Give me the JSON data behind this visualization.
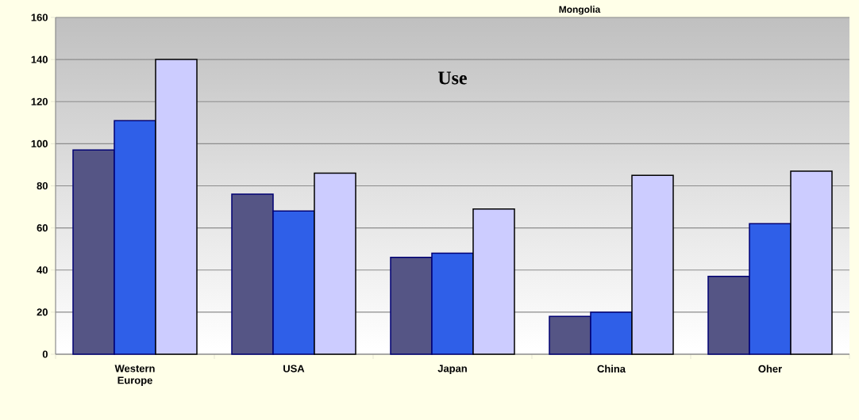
{
  "chart_data": {
    "type": "bar",
    "title": "Mongolia",
    "categories": [
      "Western Europe",
      "USA",
      "Japan",
      "China",
      "Oher"
    ],
    "series": [
      {
        "color": "#555585",
        "values": [
          97,
          76,
          46,
          18,
          37
        ]
      },
      {
        "color": "#2f5fe8",
        "values": [
          111,
          68,
          48,
          20,
          62
        ]
      },
      {
        "color": "#ccccff",
        "values": [
          140,
          86,
          69,
          85,
          87
        ]
      }
    ],
    "annotations": [
      "Use"
    ],
    "ylim": [
      0,
      160
    ],
    "yticks": [
      0,
      20,
      40,
      60,
      80,
      100,
      120,
      140,
      160
    ],
    "grid": "y"
  }
}
